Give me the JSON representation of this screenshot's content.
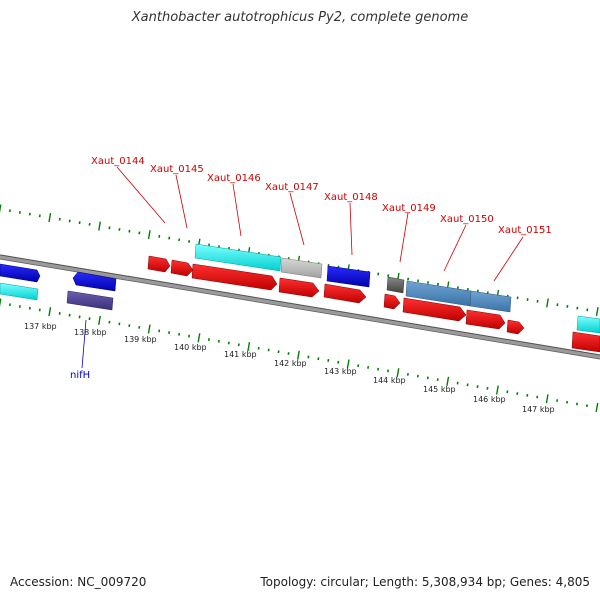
{
  "title": "Xanthobacter autotrophicus Py2, complete genome",
  "footer": {
    "accession": "Accession: NC_009720",
    "topology": "Topology: circular; Length: 5,308,934 bp; Genes: 4,805"
  },
  "colors": {
    "backbone": "#888888",
    "tick": "#008000",
    "cds": "#ff0000",
    "cds_dark": "#b30000",
    "rrna_blue": "#0000ee",
    "navy": "#4b3f8f",
    "cyan": "#00ffff",
    "steel": "#4d8ac0",
    "gray": "#bbbbbb",
    "dark_gray": "#666666",
    "red_label": "#cc0000",
    "blue_label": "#0000cc"
  },
  "scale_labels": [
    "137 kbp",
    "138 kbp",
    "139 kbp",
    "140 kbp",
    "141 kbp",
    "142 kbp",
    "143 kbp",
    "144 kbp",
    "145 kbp",
    "146 kbp",
    "147 kbp"
  ],
  "gene_labels_top": [
    "Xaut_0144",
    "Xaut_0145",
    "Xaut_0146",
    "Xaut_0147",
    "Xaut_0148",
    "Xaut_0149",
    "Xaut_0150",
    "Xaut_0151"
  ],
  "gene_label_bottom": "nifH"
}
